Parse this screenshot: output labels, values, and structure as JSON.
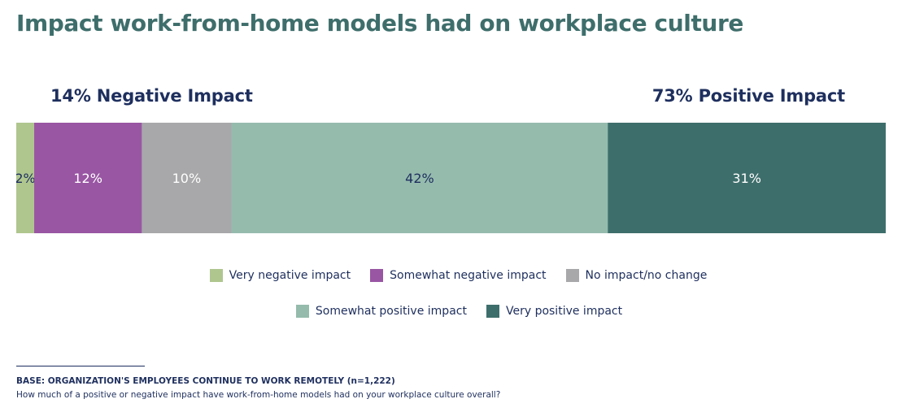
{
  "chart_data": {
    "type": "bar",
    "orientation": "horizontal-stacked",
    "title": "Impact work-from-home models had on workplace culture",
    "group_labels": {
      "negative": "14% Negative Impact",
      "positive": "73% Positive Impact"
    },
    "series": [
      {
        "name": "Very negative impact",
        "value": 2,
        "label": "2%",
        "color": "#afc68f",
        "label_color": "#1e2f5e"
      },
      {
        "name": "Somewhat negative impact",
        "value": 12,
        "label": "12%",
        "color": "#9956a3",
        "label_color": "#ffffff"
      },
      {
        "name": "No impact/no change",
        "value": 10,
        "label": "10%",
        "color": "#a8a8aa",
        "label_color": "#ffffff"
      },
      {
        "name": "Somewhat positive impact",
        "value": 42,
        "label": "42%",
        "color": "#95bbad",
        "label_color": "#1e2f5e"
      },
      {
        "name": "Very positive impact",
        "value": 31,
        "label": "31%",
        "color": "#3e6e6b",
        "label_color": "#ffffff"
      }
    ],
    "legend_rows": [
      [
        0,
        1,
        2
      ],
      [
        3,
        4
      ]
    ]
  },
  "footnote": {
    "base": "BASE: ORGANIZATION'S EMPLOYEES CONTINUE TO WORK REMOTELY (n=1,222)",
    "question": "How much of a positive or negative impact have work-from-home models had on your workplace culture overall?"
  }
}
